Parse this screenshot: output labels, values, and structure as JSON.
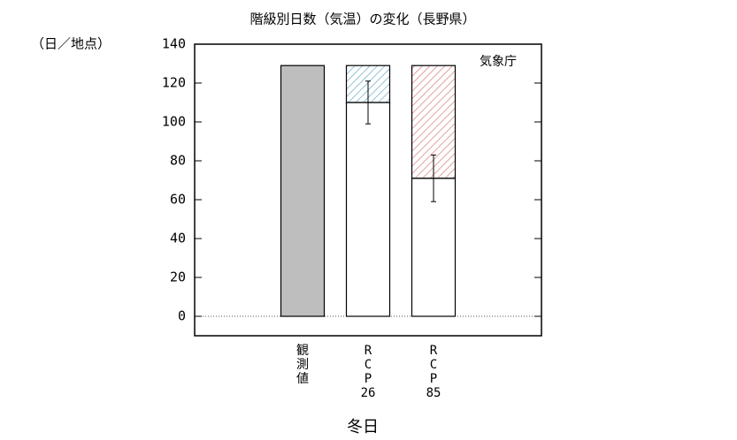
{
  "chart_data": {
    "type": "stacked-bar",
    "title": "階級別日数（気温）の変化（長野県）",
    "y_unit_label": "（日／地点）",
    "annotation": "気象庁",
    "xlabel": "冬日",
    "categories": [
      "観測値",
      "RCP26",
      "RCP85"
    ],
    "series": [
      {
        "values": [
          129,
          110,
          71
        ],
        "colors": [
          "#bebebe",
          "#ffffff",
          "#ffffff"
        ],
        "errors": [
          null,
          11,
          12
        ]
      },
      {
        "values": [
          null,
          19,
          58
        ],
        "colors": [
          null,
          "#5aa0c8",
          "#d06060"
        ],
        "hatch": true
      }
    ],
    "ylim": [
      -10,
      140
    ],
    "yticks": [
      0,
      20,
      40,
      60,
      80,
      100,
      120,
      140
    ]
  }
}
